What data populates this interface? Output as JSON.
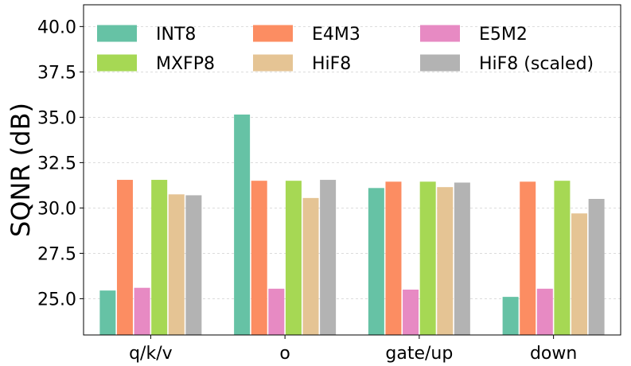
{
  "chart_data": {
    "type": "bar",
    "title": "",
    "xlabel": "",
    "ylabel": "SQNR (dB)",
    "ylim": [
      23.0,
      41.2
    ],
    "yticks": [
      25.0,
      27.5,
      30.0,
      32.5,
      35.0,
      37.5,
      40.0
    ],
    "ytick_labels": [
      "25.0",
      "27.5",
      "30.0",
      "32.5",
      "35.0",
      "37.5",
      "40.0"
    ],
    "grid": true,
    "legend_position": "top",
    "legend_columns": 3,
    "categories": [
      "q/k/v",
      "o",
      "gate/up",
      "down"
    ],
    "series": [
      {
        "name": "INT8",
        "color": "#66c2a5",
        "values": [
          25.45,
          35.15,
          31.1,
          25.1
        ]
      },
      {
        "name": "E4M3",
        "color": "#fc8d62",
        "values": [
          31.55,
          31.5,
          31.45,
          31.45
        ]
      },
      {
        "name": "E5M2",
        "color": "#e78ac3",
        "values": [
          25.6,
          25.55,
          25.5,
          25.55
        ]
      },
      {
        "name": "MXFP8",
        "color": "#a6d854",
        "values": [
          31.55,
          31.5,
          31.45,
          31.5
        ]
      },
      {
        "name": "HiF8",
        "color": "#e5c494",
        "values": [
          30.75,
          30.55,
          31.15,
          29.7
        ]
      },
      {
        "name": "HiF8 (scaled)",
        "color": "#b3b3b3",
        "values": [
          30.7,
          31.55,
          31.4,
          30.5
        ]
      }
    ]
  }
}
